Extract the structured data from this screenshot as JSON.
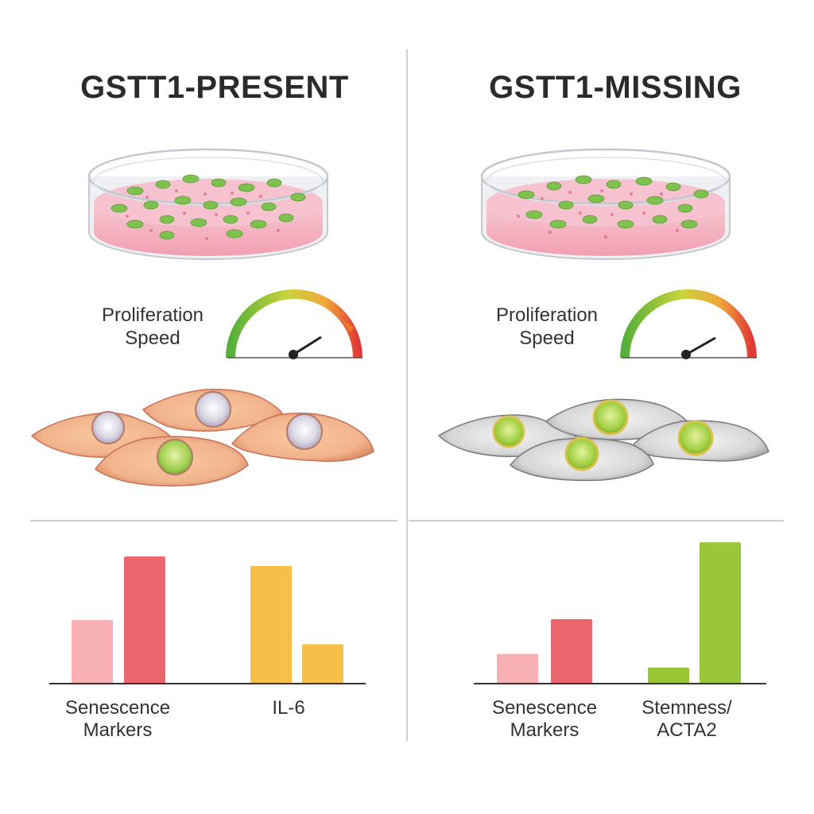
{
  "left": {
    "title": "GSTT1-PRESENT",
    "proliferation_label_line1": "Proliferation",
    "proliferation_label_line2": "Speed"
  },
  "right": {
    "title": "GSTT1-MISSING",
    "proliferation_label_line1": "Proliferation",
    "proliferation_label_line2": "Speed"
  },
  "colors": {
    "light_red": "#f7b1b4",
    "red": "#ec6670",
    "orange": "#f6bf47",
    "light_green": "#97c533",
    "green": "#9ac73a"
  },
  "chart_data": [
    {
      "type": "bar",
      "panel": "GSTT1-PRESENT",
      "categories": [
        "Senescence Markers",
        "IL-6"
      ],
      "category_lines": [
        [
          "Senescence",
          "Markers"
        ],
        [
          "IL-6"
        ]
      ],
      "series": [
        {
          "name": "bar-1",
          "values": [
            1.0,
            1.85
          ]
        },
        {
          "name": "bar-2",
          "values": [
            2.0,
            0.62
          ]
        }
      ],
      "ylim": [
        0,
        2.2
      ]
    },
    {
      "type": "bar",
      "panel": "GSTT1-MISSING",
      "categories": [
        "Senescence Markers",
        "Stemness/ACTA2"
      ],
      "category_lines": [
        [
          "Senescence",
          "Markers"
        ],
        [
          "Stemness/",
          "ACTA2"
        ]
      ],
      "series": [
        {
          "name": "bar-1",
          "values": [
            0.48,
            0.26
          ]
        },
        {
          "name": "bar-2",
          "values": [
            1.04,
            2.28
          ]
        }
      ],
      "ylim": [
        0,
        2.4
      ]
    }
  ],
  "gauges": [
    {
      "panel": "GSTT1-PRESENT",
      "level": 0.78
    },
    {
      "panel": "GSTT1-MISSING",
      "level": 0.82
    }
  ]
}
